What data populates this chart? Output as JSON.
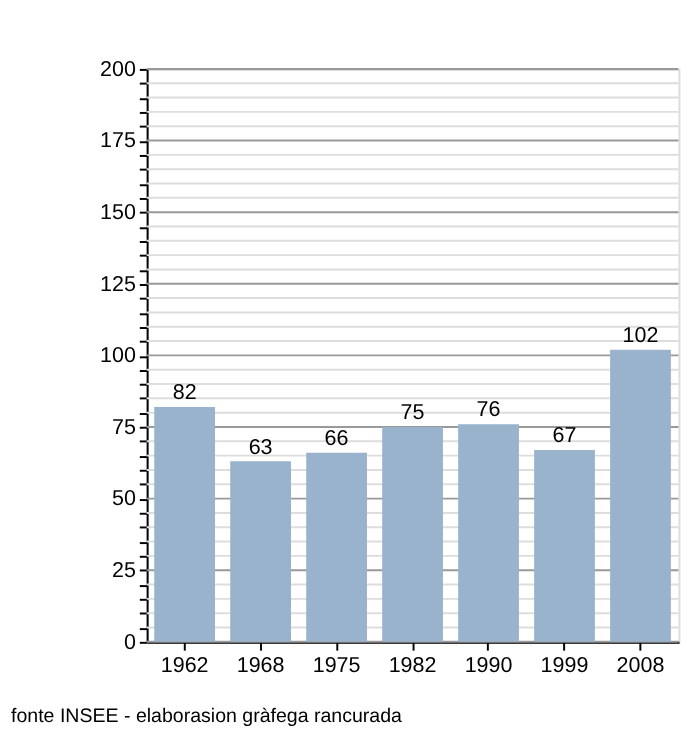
{
  "chart_data": {
    "type": "bar",
    "categories": [
      "1962",
      "1968",
      "1975",
      "1982",
      "1990",
      "1999",
      "2008"
    ],
    "values": [
      82,
      63,
      66,
      75,
      76,
      67,
      102
    ],
    "color": "#9ab3cc",
    "data_labels": true,
    "ylim": [
      0,
      200
    ],
    "yticks": [
      0,
      {
        "value": 5,
        "label": null
      },
      {
        "value": 10,
        "label": null
      },
      {
        "value": 15,
        "label": null
      },
      {
        "value": 20,
        "label": null
      },
      25,
      {
        "value": 30,
        "label": null
      },
      {
        "value": 35,
        "label": null
      },
      {
        "value": 40,
        "label": null
      },
      {
        "value": 45,
        "label": null
      },
      50,
      {
        "value": 55,
        "label": null
      },
      {
        "value": 60,
        "label": null
      },
      {
        "value": 65,
        "label": null
      },
      {
        "value": 70,
        "label": null
      },
      75,
      {
        "value": 80,
        "label": null
      },
      {
        "value": 85,
        "label": null
      },
      {
        "value": 90,
        "label": null
      },
      {
        "value": 95,
        "label": null
      },
      100,
      {
        "value": 105,
        "label": null
      },
      {
        "value": 110,
        "label": null
      },
      {
        "value": 115,
        "label": null
      },
      {
        "value": 120,
        "label": null
      },
      125,
      {
        "value": 130,
        "label": null
      },
      {
        "value": 135,
        "label": null
      },
      {
        "value": 140,
        "label": null
      },
      {
        "value": 145,
        "label": null
      },
      150,
      {
        "value": 155,
        "label": null
      },
      {
        "value": 160,
        "label": null
      },
      {
        "value": 165,
        "label": null
      },
      {
        "value": 170,
        "label": null
      },
      175,
      {
        "value": 180,
        "label": null
      },
      {
        "value": 185,
        "label": null
      },
      {
        "value": 190,
        "label": null
      },
      {
        "value": 195,
        "label": null
      },
      200
    ],
    "grid": "y",
    "annotations": [
      "fonte INSEE - elaborasion gràfega rancurada"
    ]
  }
}
